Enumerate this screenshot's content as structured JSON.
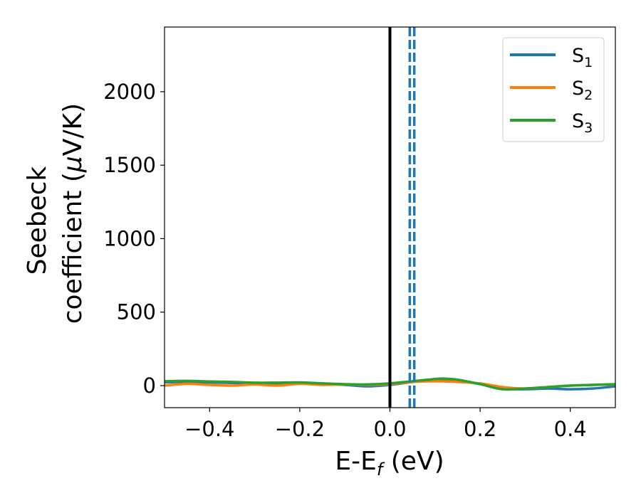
{
  "chart_data": {
    "type": "line",
    "xlabel": "E-E",
    "xlabel_sub": "f",
    "xlabel_unit": " (eV)",
    "ylabel_lines": [
      "Seebeck",
      "coefficient  (",
      "V/K)"
    ],
    "ylabel_mu": "μ",
    "xlim": [
      -0.5,
      0.5
    ],
    "ylim": [
      -150,
      2440
    ],
    "xticks": [
      -0.4,
      -0.2,
      0.0,
      0.2,
      0.4
    ],
    "xtick_labels": [
      "−0.4",
      "−0.2",
      "0.0",
      "0.2",
      "0.4"
    ],
    "yticks": [
      0,
      500,
      1000,
      1500,
      2000
    ],
    "ytick_labels": [
      "0",
      "500",
      "1000",
      "1500",
      "2000"
    ],
    "grid": false,
    "legend_position": "top-right",
    "vertical_lines": [
      {
        "x": 0.0,
        "style": "solid",
        "color": "#000000"
      },
      {
        "x": 0.044,
        "style": "dashed",
        "color": "#1f77b4"
      },
      {
        "x": 0.054,
        "style": "dashed",
        "color": "#1f77b4"
      }
    ],
    "series": [
      {
        "name": "S",
        "name_sub": "1",
        "color": "#1f77b4",
        "x": [
          -0.5,
          -0.45,
          -0.4,
          -0.35,
          -0.3,
          -0.25,
          -0.2,
          -0.15,
          -0.1,
          -0.05,
          0.0,
          0.05,
          0.1,
          0.12,
          0.15,
          0.2,
          0.25,
          0.3,
          0.35,
          0.4,
          0.45,
          0.5
        ],
        "y": [
          22,
          25,
          22,
          18,
          14,
          15,
          18,
          12,
          5,
          -5,
          5,
          25,
          40,
          42,
          35,
          10,
          -20,
          -25,
          -20,
          -25,
          -20,
          -5
        ]
      },
      {
        "name": "S",
        "name_sub": "2",
        "color": "#ff7f0e",
        "x": [
          -0.5,
          -0.45,
          -0.4,
          -0.35,
          -0.3,
          -0.25,
          -0.2,
          -0.15,
          -0.1,
          -0.05,
          0.0,
          0.05,
          0.1,
          0.15,
          0.2,
          0.25,
          0.3,
          0.35,
          0.4,
          0.45,
          0.5
        ],
        "y": [
          0,
          12,
          5,
          0,
          8,
          0,
          12,
          5,
          8,
          5,
          10,
          25,
          30,
          25,
          15,
          -10,
          -20,
          -10,
          0,
          5,
          8
        ]
      },
      {
        "name": "S",
        "name_sub": "3",
        "color": "#2ca02c",
        "x": [
          -0.5,
          -0.45,
          -0.4,
          -0.35,
          -0.3,
          -0.25,
          -0.2,
          -0.15,
          -0.1,
          -0.05,
          0.0,
          0.05,
          0.1,
          0.12,
          0.15,
          0.2,
          0.25,
          0.3,
          0.35,
          0.4,
          0.45,
          0.5
        ],
        "y": [
          30,
          32,
          28,
          25,
          20,
          20,
          22,
          15,
          10,
          8,
          15,
          30,
          45,
          48,
          40,
          10,
          -25,
          -20,
          -10,
          0,
          5,
          10
        ]
      }
    ]
  }
}
